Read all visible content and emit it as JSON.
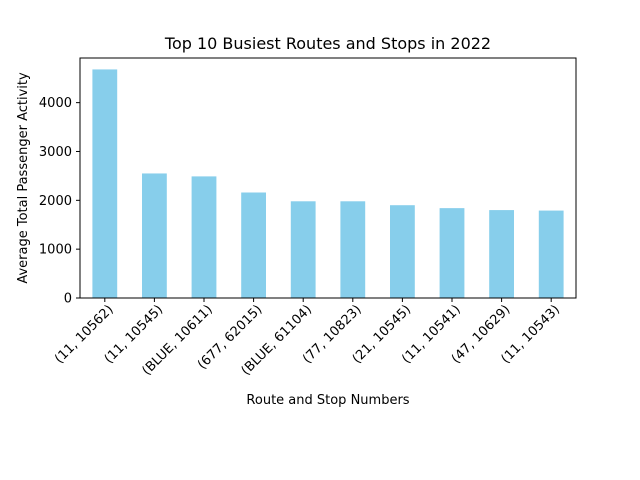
{
  "colors": {
    "bar": "#87CEEB"
  },
  "chart_data": {
    "type": "bar",
    "title": "Top 10 Busiest Routes and Stops in 2022",
    "xlabel": "Route and Stop Numbers",
    "ylabel": "Average Total Passenger Activity",
    "categories": [
      "(11, 10562)",
      "(11, 10545)",
      "(BLUE, 10611)",
      "(677, 62015)",
      "(BLUE, 61104)",
      "(77, 10823)",
      "(21, 10545)",
      "(11, 10541)",
      "(47, 10629)",
      "(11, 10543)"
    ],
    "values": [
      4680,
      2550,
      2490,
      2160,
      1980,
      1980,
      1900,
      1840,
      1800,
      1790
    ],
    "ylim": [
      0,
      4914
    ],
    "yticks": [
      0,
      1000,
      2000,
      3000,
      4000
    ],
    "ytick_labels": [
      "0",
      "1000",
      "2000",
      "3000",
      "4000"
    ],
    "xtick_rotation": 45,
    "grid": false,
    "legend": "none"
  }
}
